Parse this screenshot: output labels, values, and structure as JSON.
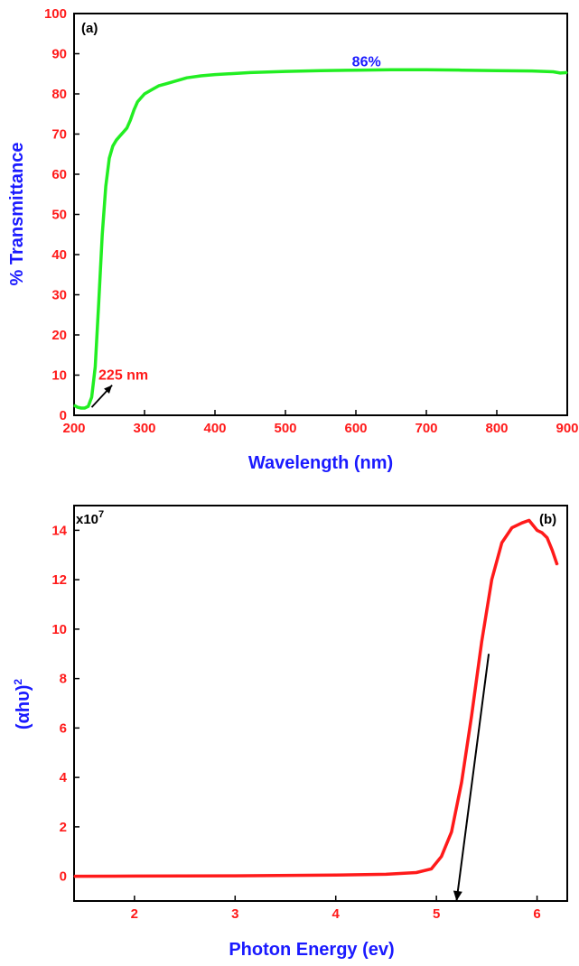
{
  "chart_data": [
    {
      "type": "line",
      "panel_label": "(a)",
      "xlabel": "Wavelength (nm)",
      "ylabel": "% Transmittance",
      "xlim": [
        200,
        900
      ],
      "ylim": [
        0,
        100
      ],
      "xticks": [
        200,
        300,
        400,
        500,
        600,
        700,
        800,
        900
      ],
      "yticks": [
        0,
        10,
        20,
        30,
        40,
        50,
        60,
        70,
        80,
        90,
        100
      ],
      "line_color": "#22ee22",
      "x": [
        200,
        205,
        210,
        215,
        220,
        225,
        230,
        235,
        240,
        245,
        250,
        255,
        260,
        265,
        270,
        275,
        280,
        285,
        290,
        295,
        300,
        310,
        320,
        330,
        340,
        350,
        360,
        380,
        400,
        450,
        500,
        550,
        600,
        650,
        700,
        750,
        800,
        850,
        880,
        890,
        900
      ],
      "y": [
        2.5,
        2.0,
        1.8,
        1.8,
        2.2,
        4.5,
        12.0,
        28.0,
        45.0,
        57.0,
        64.0,
        67.0,
        68.5,
        69.5,
        70.5,
        71.5,
        73.5,
        76.0,
        78.0,
        79.0,
        80.0,
        81.0,
        82.0,
        82.5,
        83.0,
        83.5,
        84.0,
        84.5,
        84.8,
        85.3,
        85.6,
        85.8,
        85.9,
        86.0,
        86.0,
        85.9,
        85.8,
        85.7,
        85.5,
        85.2,
        85.3
      ],
      "annotations": [
        {
          "text": "225 nm",
          "x": 270,
          "y": 10,
          "arrow_to": [
            225,
            2
          ],
          "arrow_from": [
            254,
            7.5
          ],
          "color": "#ff1a1a"
        },
        {
          "text": "86%",
          "x": 615,
          "y": 88,
          "color": "#1a1aff"
        }
      ]
    },
    {
      "type": "line",
      "panel_label": "(b)",
      "xlabel": "Photon Energy (ev)",
      "ylabel": "(αhυ)",
      "ylabel_superscript": "2",
      "y_multiplier": "x10",
      "y_multiplier_exp": "7",
      "xlim": [
        1.4,
        6.3
      ],
      "ylim": [
        -1.0,
        15.0
      ],
      "xticks": [
        2,
        3,
        4,
        5,
        6
      ],
      "yticks": [
        0,
        2,
        4,
        6,
        8,
        10,
        12,
        14
      ],
      "line_color": "#ff1a1a",
      "x": [
        1.4,
        2.0,
        3.0,
        4.0,
        4.5,
        4.8,
        4.95,
        5.05,
        5.15,
        5.25,
        5.35,
        5.45,
        5.55,
        5.65,
        5.75,
        5.85,
        5.92,
        6.0,
        6.05,
        6.1,
        6.15,
        6.2
      ],
      "y": [
        0.0,
        0.01,
        0.02,
        0.05,
        0.08,
        0.15,
        0.3,
        0.8,
        1.8,
        3.8,
        6.5,
        9.5,
        12.0,
        13.5,
        14.1,
        14.3,
        14.4,
        14.0,
        13.9,
        13.7,
        13.2,
        12.6
      ],
      "tangent_line": {
        "from": [
          5.52,
          9.0
        ],
        "to": [
          5.2,
          -1.0
        ],
        "color": "#000000"
      }
    }
  ]
}
